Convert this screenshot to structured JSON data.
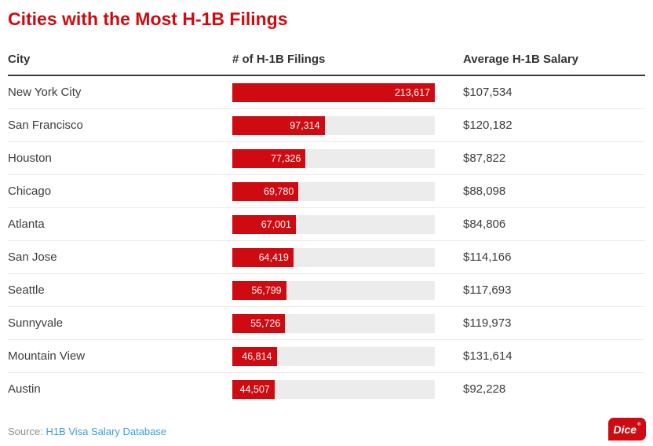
{
  "title": "Cities with the Most H-1B Filings",
  "colors": {
    "accent_red": "#cf0a10",
    "bar_track_gray": "#ececec",
    "link_blue": "#3aa0d8",
    "logo_red": "#cf0a10",
    "header_rule_dark": "#3a3a3a"
  },
  "table": {
    "columns": [
      "City",
      "# of H-1B Filings",
      "Average H-1B Salary"
    ],
    "rows": [
      {
        "city": "New York City",
        "filings": 213617,
        "filings_label": "213,617",
        "salary": "$107,534"
      },
      {
        "city": "San Francisco",
        "filings": 97314,
        "filings_label": "97,314",
        "salary": "$120,182"
      },
      {
        "city": "Houston",
        "filings": 77326,
        "filings_label": "77,326",
        "salary": "$87,822"
      },
      {
        "city": "Chicago",
        "filings": 69780,
        "filings_label": "69,780",
        "salary": "$88,098"
      },
      {
        "city": "Atlanta",
        "filings": 67001,
        "filings_label": "67,001",
        "salary": "$84,806"
      },
      {
        "city": "San Jose",
        "filings": 64419,
        "filings_label": "64,419",
        "salary": "$114,166"
      },
      {
        "city": "Seattle",
        "filings": 56799,
        "filings_label": "56,799",
        "salary": "$117,693"
      },
      {
        "city": "Sunnyvale",
        "filings": 55726,
        "filings_label": "55,726",
        "salary": "$119,973"
      },
      {
        "city": "Mountain View",
        "filings": 46814,
        "filings_label": "46,814",
        "salary": "$131,614"
      },
      {
        "city": "Austin",
        "filings": 44507,
        "filings_label": "44,507",
        "salary": "$92,228"
      }
    ]
  },
  "footer": {
    "source_prefix": "Source:",
    "source_link": "H1B Visa Salary Database",
    "logo_text": "Dice",
    "logo_mark": "®"
  },
  "chart_data": {
    "type": "bar",
    "orientation": "horizontal",
    "title": "Cities with the Most H-1B Filings",
    "categories": [
      "New York City",
      "San Francisco",
      "Houston",
      "Chicago",
      "Atlanta",
      "San Jose",
      "Seattle",
      "Sunnyvale",
      "Mountain View",
      "Austin"
    ],
    "series": [
      {
        "name": "# of H-1B Filings",
        "values": [
          213617,
          97314,
          77326,
          69780,
          67001,
          64419,
          56799,
          55726,
          46814,
          44507
        ]
      },
      {
        "name": "Average H-1B Salary",
        "values": [
          107534,
          120182,
          87822,
          88098,
          84806,
          114166,
          117693,
          119973,
          131614,
          92228
        ]
      }
    ],
    "xlim": [
      0,
      213617
    ],
    "bar_color": "#cf0a10",
    "value_labels": "inside-right",
    "grid": false,
    "legend": "none"
  }
}
